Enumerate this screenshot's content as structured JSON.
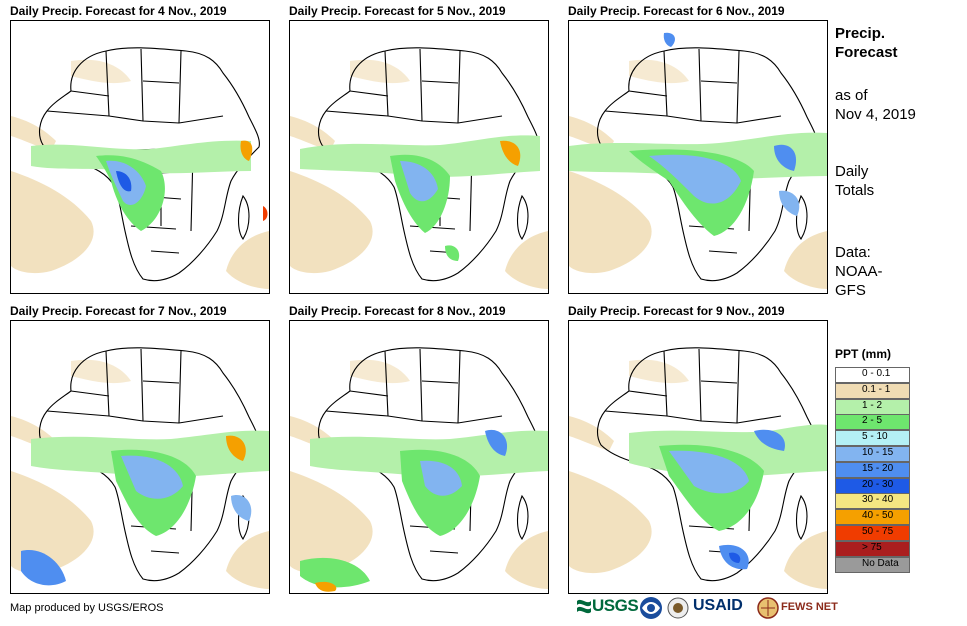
{
  "panels": [
    {
      "title": "Daily Precip. Forecast for 4 Nov., 2019"
    },
    {
      "title": "Daily Precip. Forecast for 5 Nov., 2019"
    },
    {
      "title": "Daily Precip. Forecast for 6 Nov., 2019"
    },
    {
      "title": "Daily Precip. Forecast for 7 Nov., 2019"
    },
    {
      "title": "Daily Precip. Forecast for 8 Nov., 2019"
    },
    {
      "title": "Daily Precip. Forecast for 9 Nov., 2019"
    }
  ],
  "side": {
    "heading_1": "Precip.",
    "heading_2": "Forecast",
    "asof_1": "as of",
    "asof_2": "Nov 4, 2019",
    "totals_1": "Daily",
    "totals_2": "Totals",
    "data_1": "Data:",
    "data_2": "NOAA-",
    "data_3": "GFS"
  },
  "legend": {
    "title": "PPT (mm)",
    "items": [
      {
        "label": "0 - 0.1",
        "color": "#ffffff"
      },
      {
        "label": "0.1 - 1",
        "color": "#f0dcb4"
      },
      {
        "label": "1 - 2",
        "color": "#b4f0aa"
      },
      {
        "label": "2 - 5",
        "color": "#6ee66e"
      },
      {
        "label": "5 - 10",
        "color": "#b4f0f5"
      },
      {
        "label": "10 - 15",
        "color": "#82b4f0"
      },
      {
        "label": "15 - 20",
        "color": "#4f8ef0"
      },
      {
        "label": "20 - 30",
        "color": "#1e5ae6"
      },
      {
        "label": "30 - 40",
        "color": "#f5e682"
      },
      {
        "label": "40 - 50",
        "color": "#f5a000"
      },
      {
        "label": "50 - 75",
        "color": "#f03c00"
      },
      {
        "label": "> 75",
        "color": "#aa1e1e"
      },
      {
        "label": "No Data",
        "color": "#9a9a9a"
      }
    ]
  },
  "credit": "Map produced by USGS/EROS",
  "logos": {
    "usgs": "USGS",
    "usaid": "USAID",
    "fews": "FEWS NET"
  }
}
